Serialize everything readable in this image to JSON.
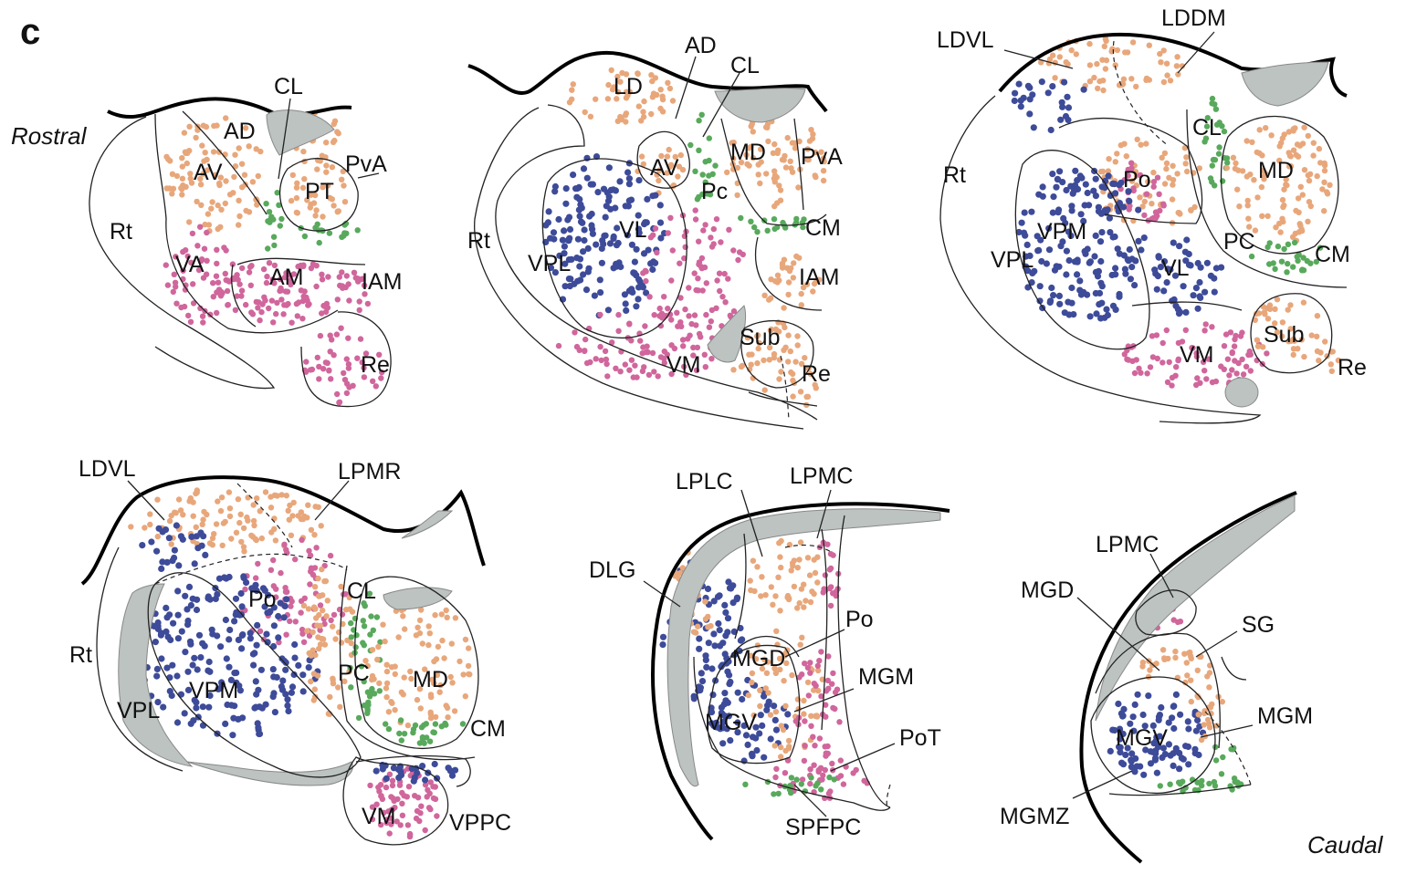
{
  "panel_letter": "c",
  "orientation": {
    "rostral": "Rostral",
    "caudal": "Caudal"
  },
  "colors": {
    "orange": "#e8a77b",
    "pink": "#d0669c",
    "blue": "#3d4b99",
    "green": "#58a95c",
    "gray": "#bcc3c1"
  },
  "sections": [
    {
      "name": "section-1",
      "labels": [
        "CL",
        "AD",
        "PvA",
        "AV",
        "PT",
        "Rt",
        "VA",
        "AM",
        "IAM",
        "Re"
      ]
    },
    {
      "name": "section-2",
      "labels": [
        "AD",
        "CL",
        "LD",
        "MD",
        "AV",
        "PvA",
        "Pc",
        "VL",
        "CM",
        "Rt",
        "VPL",
        "IAM",
        "Sub",
        "VM",
        "Re"
      ]
    },
    {
      "name": "section-3",
      "labels": [
        "LDDM",
        "LDVL",
        "CL",
        "MD",
        "Rt",
        "Po",
        "VPM",
        "PC",
        "CM",
        "VPL",
        "VL",
        "Sub",
        "VM",
        "Re"
      ]
    },
    {
      "name": "section-4",
      "labels": [
        "LDVL",
        "LPMR",
        "Po",
        "CL",
        "Rt",
        "PC",
        "MD",
        "VPM",
        "VPL",
        "CM",
        "VM",
        "VPPC"
      ]
    },
    {
      "name": "section-5",
      "labels": [
        "LPLC",
        "LPMC",
        "DLG",
        "Po",
        "MGD",
        "MGM",
        "MGV",
        "PoT",
        "SPFPC"
      ]
    },
    {
      "name": "section-6",
      "labels": [
        "LPMC",
        "MGD",
        "SG",
        "MGM",
        "MGV",
        "MGMZ"
      ]
    }
  ]
}
